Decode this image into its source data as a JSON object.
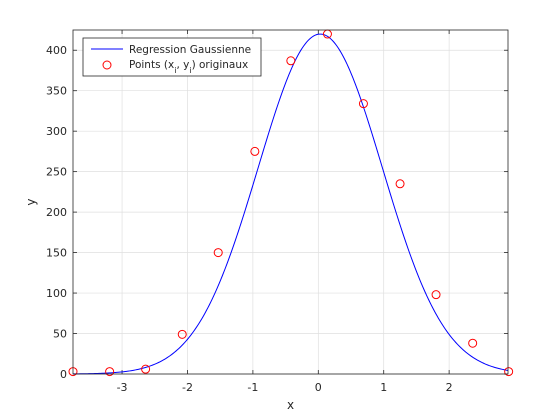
{
  "chart_data": {
    "type": "line",
    "title": "",
    "xlabel": "x",
    "ylabel": "y",
    "xlim": [
      -3.75,
      2.9
    ],
    "ylim": [
      0,
      425
    ],
    "grid": true,
    "legend_placement": "top-left",
    "x_ticks": [
      -3,
      -2,
      -1,
      0,
      1,
      2
    ],
    "x_tick_labels": [
      "-3",
      "-2",
      "-1",
      "0",
      "1",
      "2"
    ],
    "y_ticks": [
      0,
      50,
      100,
      150,
      200,
      250,
      300,
      350,
      400
    ],
    "y_tick_labels": [
      "0",
      "50",
      "100",
      "150",
      "200",
      "250",
      "300",
      "350",
      "400"
    ],
    "series": [
      {
        "name": "Regression Gaussienne",
        "kind": "line",
        "color": "#0000ff",
        "model": "gaussian",
        "amplitude": 420,
        "mean": 0.03,
        "sigma": 0.95
      },
      {
        "name_main": "Points (x",
        "name_sub1": "i",
        "name_mid": ", y",
        "name_sub2": "i",
        "name_end": ") originaux",
        "kind": "scatter",
        "color": "#ff0000",
        "points": [
          {
            "x": -3.75,
            "y": 3
          },
          {
            "x": -3.19,
            "y": 3
          },
          {
            "x": -2.64,
            "y": 6
          },
          {
            "x": -2.08,
            "y": 49
          },
          {
            "x": -1.53,
            "y": 150
          },
          {
            "x": -0.97,
            "y": 275
          },
          {
            "x": -0.42,
            "y": 387
          },
          {
            "x": 0.14,
            "y": 420
          },
          {
            "x": 0.69,
            "y": 334
          },
          {
            "x": 1.25,
            "y": 235
          },
          {
            "x": 1.8,
            "y": 98
          },
          {
            "x": 2.36,
            "y": 38
          },
          {
            "x": 2.91,
            "y": 3
          }
        ]
      }
    ]
  }
}
